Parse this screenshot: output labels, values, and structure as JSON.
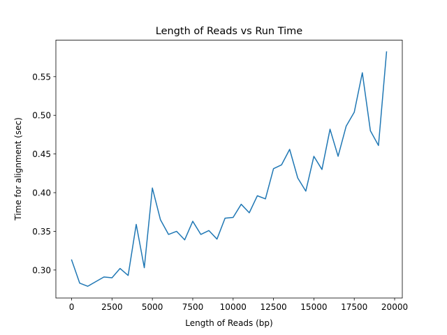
{
  "chart_data": {
    "type": "line",
    "title": "Length of Reads vs Run Time",
    "xlabel": "Length of Reads (bp)",
    "ylabel": "Time for alignment (sec)",
    "xlim": [
      -975,
      20475
    ],
    "ylim": [
      0.2638,
      0.5972
    ],
    "xticks": [
      0,
      2500,
      5000,
      7500,
      10000,
      12500,
      15000,
      17500,
      20000
    ],
    "yticks": [
      0.3,
      0.35,
      0.4,
      0.45,
      0.5,
      0.55
    ],
    "grid": false,
    "colors": {
      "line": "#1f77b4",
      "axes": "#000000"
    },
    "series": [
      {
        "x": [
          0,
          500,
          1000,
          1500,
          2000,
          2500,
          3000,
          3500,
          4000,
          4500,
          5000,
          5500,
          6000,
          6500,
          7000,
          7500,
          8000,
          8500,
          9000,
          9500,
          10000,
          10500,
          11000,
          11500,
          12000,
          12500,
          13000,
          13500,
          14000,
          14500,
          15000,
          15500,
          16000,
          16500,
          17000,
          17500,
          18000,
          18500,
          19000,
          19500
        ],
        "values": [
          0.313,
          0.283,
          0.279,
          0.285,
          0.291,
          0.29,
          0.302,
          0.293,
          0.359,
          0.303,
          0.406,
          0.365,
          0.346,
          0.35,
          0.339,
          0.363,
          0.346,
          0.351,
          0.34,
          0.367,
          0.368,
          0.385,
          0.374,
          0.396,
          0.392,
          0.431,
          0.436,
          0.456,
          0.419,
          0.402,
          0.447,
          0.43,
          0.482,
          0.447,
          0.486,
          0.504,
          0.555,
          0.48,
          0.461,
          0.582
        ]
      }
    ]
  }
}
